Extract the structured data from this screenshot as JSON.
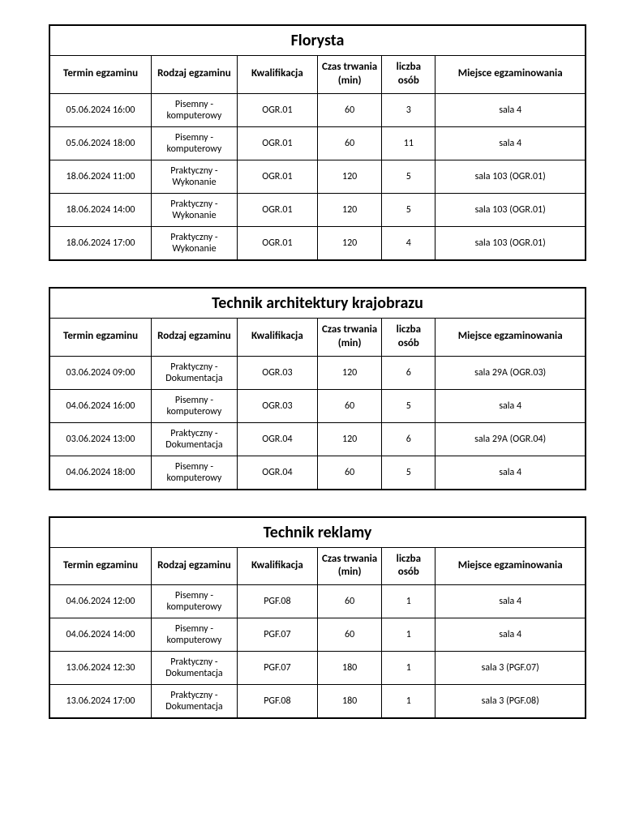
{
  "headers": {
    "termin": "Termin egzaminu",
    "rodzaj": "Rodzaj egzaminu",
    "kwalifikacja": "Kwalifikacja",
    "czas": "Czas trwania (min)",
    "liczba": "liczba osób",
    "miejsce": "Miejsce egzaminowania"
  },
  "tables": [
    {
      "title": "Florysta",
      "rows": [
        {
          "termin": "05.06.2024 16:00",
          "rodzaj": "Pisemny - komputerowy",
          "kwalifikacja": "OGR.01",
          "czas": "60",
          "liczba": "3",
          "miejsce": "sala 4"
        },
        {
          "termin": "05.06.2024 18:00",
          "rodzaj": "Pisemny - komputerowy",
          "kwalifikacja": "OGR.01",
          "czas": "60",
          "liczba": "11",
          "miejsce": "sala 4"
        },
        {
          "termin": "18.06.2024 11:00",
          "rodzaj": "Praktyczny - Wykonanie",
          "kwalifikacja": "OGR.01",
          "czas": "120",
          "liczba": "5",
          "miejsce": "sala 103 (OGR.01)"
        },
        {
          "termin": "18.06.2024 14:00",
          "rodzaj": "Praktyczny - Wykonanie",
          "kwalifikacja": "OGR.01",
          "czas": "120",
          "liczba": "5",
          "miejsce": "sala 103 (OGR.01)"
        },
        {
          "termin": "18.06.2024 17:00",
          "rodzaj": "Praktyczny - Wykonanie",
          "kwalifikacja": "OGR.01",
          "czas": "120",
          "liczba": "4",
          "miejsce": "sala 103 (OGR.01)"
        }
      ]
    },
    {
      "title": "Technik architektury krajobrazu",
      "rows": [
        {
          "termin": "03.06.2024 09:00",
          "rodzaj": "Praktyczny - Dokumentacja",
          "kwalifikacja": "OGR.03",
          "czas": "120",
          "liczba": "6",
          "miejsce": "sala 29A (OGR.03)"
        },
        {
          "termin": "04.06.2024 16:00",
          "rodzaj": "Pisemny - komputerowy",
          "kwalifikacja": "OGR.03",
          "czas": "60",
          "liczba": "5",
          "miejsce": "sala 4"
        },
        {
          "termin": "03.06.2024 13:00",
          "rodzaj": "Praktyczny - Dokumentacja",
          "kwalifikacja": "OGR.04",
          "czas": "120",
          "liczba": "6",
          "miejsce": "sala 29A (OGR.04)"
        },
        {
          "termin": "04.06.2024 18:00",
          "rodzaj": "Pisemny - komputerowy",
          "kwalifikacja": "OGR.04",
          "czas": "60",
          "liczba": "5",
          "miejsce": "sala 4"
        }
      ]
    },
    {
      "title": "Technik reklamy",
      "rows": [
        {
          "termin": "04.06.2024 12:00",
          "rodzaj": "Pisemny - komputerowy",
          "kwalifikacja": "PGF.08",
          "czas": "60",
          "liczba": "1",
          "miejsce": "sala 4"
        },
        {
          "termin": "04.06.2024 14:00",
          "rodzaj": "Pisemny - komputerowy",
          "kwalifikacja": "PGF.07",
          "czas": "60",
          "liczba": "1",
          "miejsce": "sala 4"
        },
        {
          "termin": "13.06.2024 12:30",
          "rodzaj": "Praktyczny - Dokumentacja",
          "kwalifikacja": "PGF.07",
          "czas": "180",
          "liczba": "1",
          "miejsce": "sala 3 (PGF.07)"
        },
        {
          "termin": "13.06.2024 17:00",
          "rodzaj": "Praktyczny - Dokumentacja",
          "kwalifikacja": "PGF.08",
          "czas": "180",
          "liczba": "1",
          "miejsce": "sala 3 (PGF.08)"
        }
      ]
    }
  ]
}
